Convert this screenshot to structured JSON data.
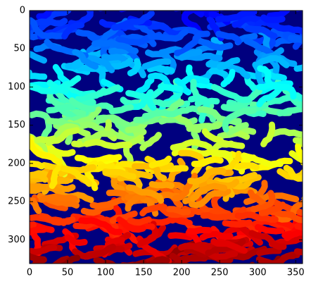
{
  "chart_data": {
    "type": "image",
    "xlim": [
      0,
      359
    ],
    "xticks": [
      0,
      50,
      100,
      150,
      200,
      250,
      300,
      350
    ],
    "ylim": [
      331,
      0
    ],
    "yticks": [
      0,
      50,
      100,
      150,
      200,
      250,
      300
    ],
    "colormap": "jet"
  }
}
